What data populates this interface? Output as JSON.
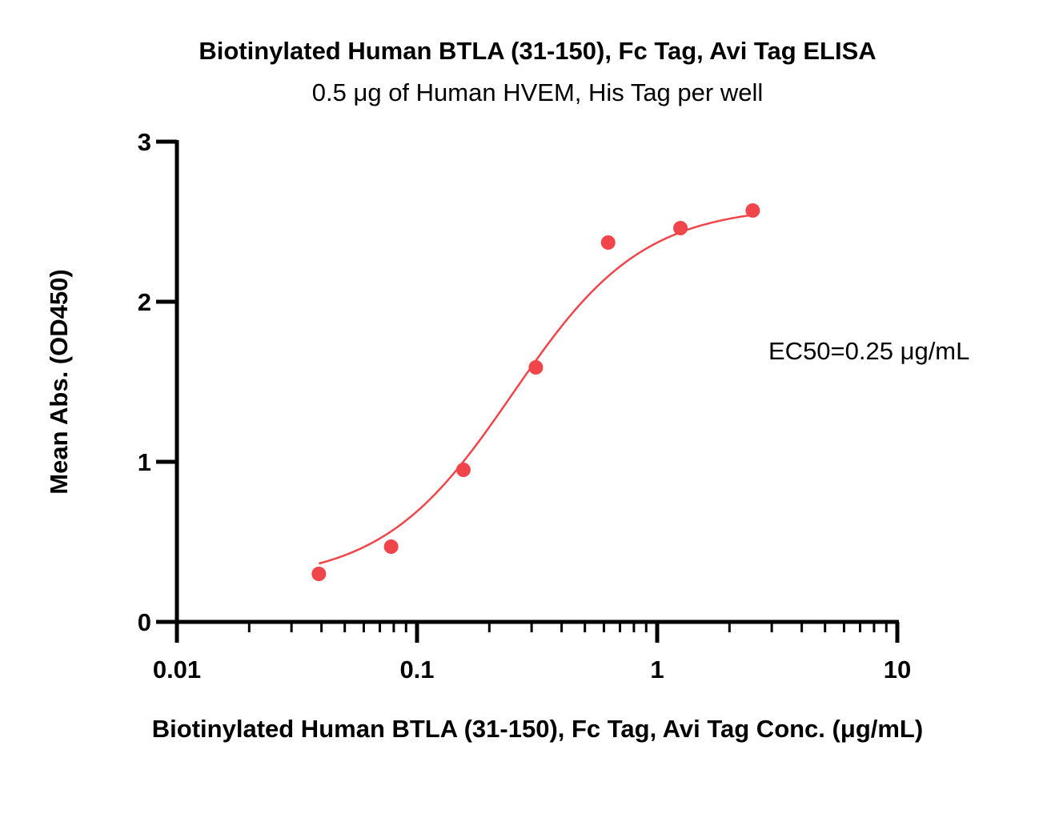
{
  "chart_data": {
    "type": "scatter",
    "title": "Biotinylated Human BTLA (31-150), Fc Tag, Avi Tag ELISA",
    "subtitle": "0.5 μg of Human HVEM, His Tag per well",
    "xlabel": "Biotinylated Human BTLA (31-150), Fc Tag, Avi Tag Conc. (μg/mL)",
    "ylabel": "Mean Abs. (OD450)",
    "x_scale": "log",
    "xlim": [
      0.01,
      10
    ],
    "ylim": [
      0,
      3
    ],
    "x_ticks": [
      "0.01",
      "0.1",
      "1",
      "10"
    ],
    "y_ticks": [
      "0",
      "1",
      "2",
      "3"
    ],
    "grid": false,
    "annotation": "EC50=0.25 μg/mL",
    "series": [
      {
        "x": [
          0.039,
          0.078,
          0.156,
          0.3125,
          0.625,
          1.25,
          2.5
        ],
        "y": [
          0.3,
          0.47,
          0.95,
          1.59,
          2.37,
          2.46,
          2.57
        ],
        "fit": "4PL",
        "color": "#f0464b"
      }
    ],
    "colors": {
      "series": "#f0464b",
      "axis": "#000000"
    }
  }
}
